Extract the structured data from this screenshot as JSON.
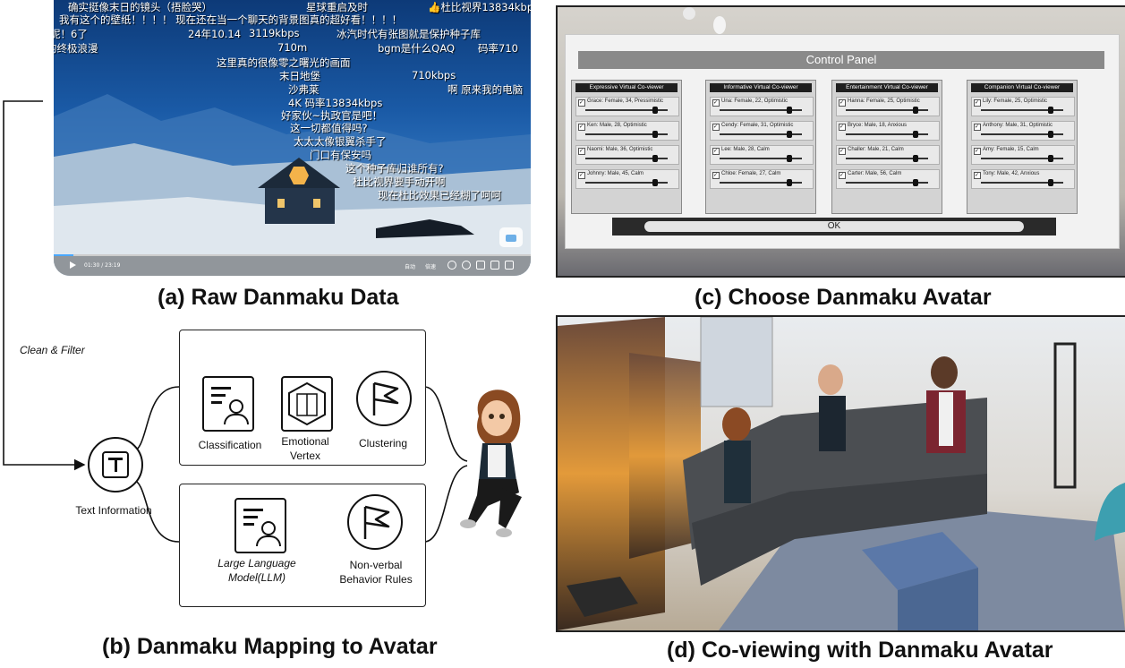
{
  "captions": {
    "a": "(a) Raw Danmaku Data",
    "b": "(b) Danmaku  Mapping to Avatar",
    "c": "(c) Choose Danmaku Avatar",
    "d": "(d) Co-viewing with Danmaku Avatar"
  },
  "video": {
    "danmaku": [
      "确实挺像末日的镜头（捂脸哭）",
      "星球重启及时",
      "👍杜比视界13834kbps",
      "我有这个的壁纸！！！！ 现在还在当一个聊天的背景图真的超好看！！！！",
      "呢！6了",
      "24年10.14",
      "3119kbps",
      "冰汽时代有张图就是保护种子库",
      "的终极浪漫",
      "710m",
      "bgm是什么QAQ",
      "码率710",
      "这里真的很像零之曙光的画面",
      "末日地堡",
      "710kbps",
      "沙弗莱",
      "啊 原来我的电脑",
      "4K 码率13834kbps",
      "好家伙~执政官是吧！",
      "这一切都值得吗?",
      "太太太像银翼杀手了",
      "门口有保安吗",
      "这个种子库归谁所有?",
      "杜比视界要手动开啊",
      "现在杜比效果已经糊了呵呵"
    ],
    "time": "01:30 / 23:19",
    "auto": "自动",
    "speed": "倍速"
  },
  "flow": {
    "clean_filter": "Clean & Filter",
    "text_information": "Text Information",
    "classification": "Classification",
    "emotional_vertex": "Emotional\nVertex",
    "clustering": "Clustering",
    "llm": "Large Language\nModel(LLM)",
    "nonverbal": "Non-verbal\nBehavior Rules"
  },
  "control_panel": {
    "title": "Control Panel",
    "ok": "OK",
    "groups": [
      {
        "title": "Expressive Virtual Co-viewer",
        "items": [
          {
            "label": "Grace: Female, 34, Pressimistic",
            "level": 0.85
          },
          {
            "label": "Ken: Male, 28, Optimistic",
            "level": 0.85
          },
          {
            "label": "Naomi: Male, 36, Optimistic",
            "level": 0.85
          },
          {
            "label": "Johnny: Male, 45, Calm",
            "level": 0.85
          }
        ]
      },
      {
        "title": "Informative Virtual Co-viewer",
        "items": [
          {
            "label": "Una: Female, 22, Optimistic",
            "level": 0.85
          },
          {
            "label": "Cendy: Female, 31, Optimistic",
            "level": 0.85
          },
          {
            "label": "Lee: Male, 28, Calm",
            "level": 0.85
          },
          {
            "label": "Chloe: Female, 27, Calm",
            "level": 0.85
          }
        ]
      },
      {
        "title": "Entertainment Virtual Co-viewer",
        "items": [
          {
            "label": "Hanna: Female, 25, Optimistic",
            "level": 0.85
          },
          {
            "label": "Bryce: Male, 18, Anxious",
            "level": 0.85
          },
          {
            "label": "Challer: Male, 21, Calm",
            "level": 0.85
          },
          {
            "label": "Carter: Male, 56, Calm",
            "level": 0.85
          }
        ]
      },
      {
        "title": "Companion Virtual Co-viewer",
        "items": [
          {
            "label": "Lily: Female, 25, Optimistic",
            "level": 0.85
          },
          {
            "label": "Anthony: Male, 31, Optimistic",
            "level": 0.85
          },
          {
            "label": "Amy: Female, 15, Calm",
            "level": 0.85
          },
          {
            "label": "Tony: Male, 42, Anxious",
            "level": 0.85
          }
        ]
      }
    ]
  }
}
